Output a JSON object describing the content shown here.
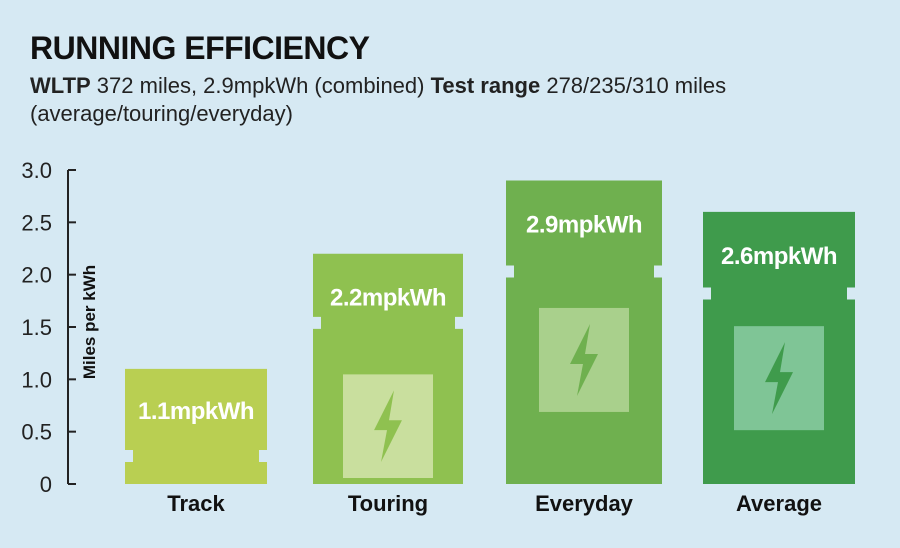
{
  "header": {
    "title": "RUNNING EFFICIENCY",
    "wltp_label": "WLTP",
    "wltp_text": " 372 miles, 2.9mpkWh (combined) ",
    "test_label": "Test range",
    "test_text": " 278/235/310 miles (average/touring/everyday)"
  },
  "chart_data": {
    "type": "bar",
    "title": "RUNNING EFFICIENCY",
    "xlabel": "",
    "ylabel": "Miles per kWh",
    "ylim": [
      0,
      3.0
    ],
    "yticks": [
      "0",
      "0.5",
      "1.0",
      "1.5",
      "2.0",
      "2.5",
      "3.0"
    ],
    "categories": [
      "Track",
      "Touring",
      "Everyday",
      "Average"
    ],
    "values": [
      1.1,
      2.2,
      2.9,
      2.6
    ],
    "data_labels": [
      "1.1mpkWh",
      "2.2mpkWh",
      "2.9mpkWh",
      "2.6mpkWh"
    ],
    "colors": [
      "#b9cf52",
      "#8fc150",
      "#6fb04f",
      "#3f9b4c"
    ],
    "battery_icon_colors": [
      "",
      "#c9df9e",
      "#a9d08c",
      "#7fc596"
    ],
    "bolt_colors": [
      "",
      "#8fc150",
      "#6fb04f",
      "#3f9b4c"
    ],
    "grid": false,
    "icon": "lightning-bolt-icon"
  }
}
